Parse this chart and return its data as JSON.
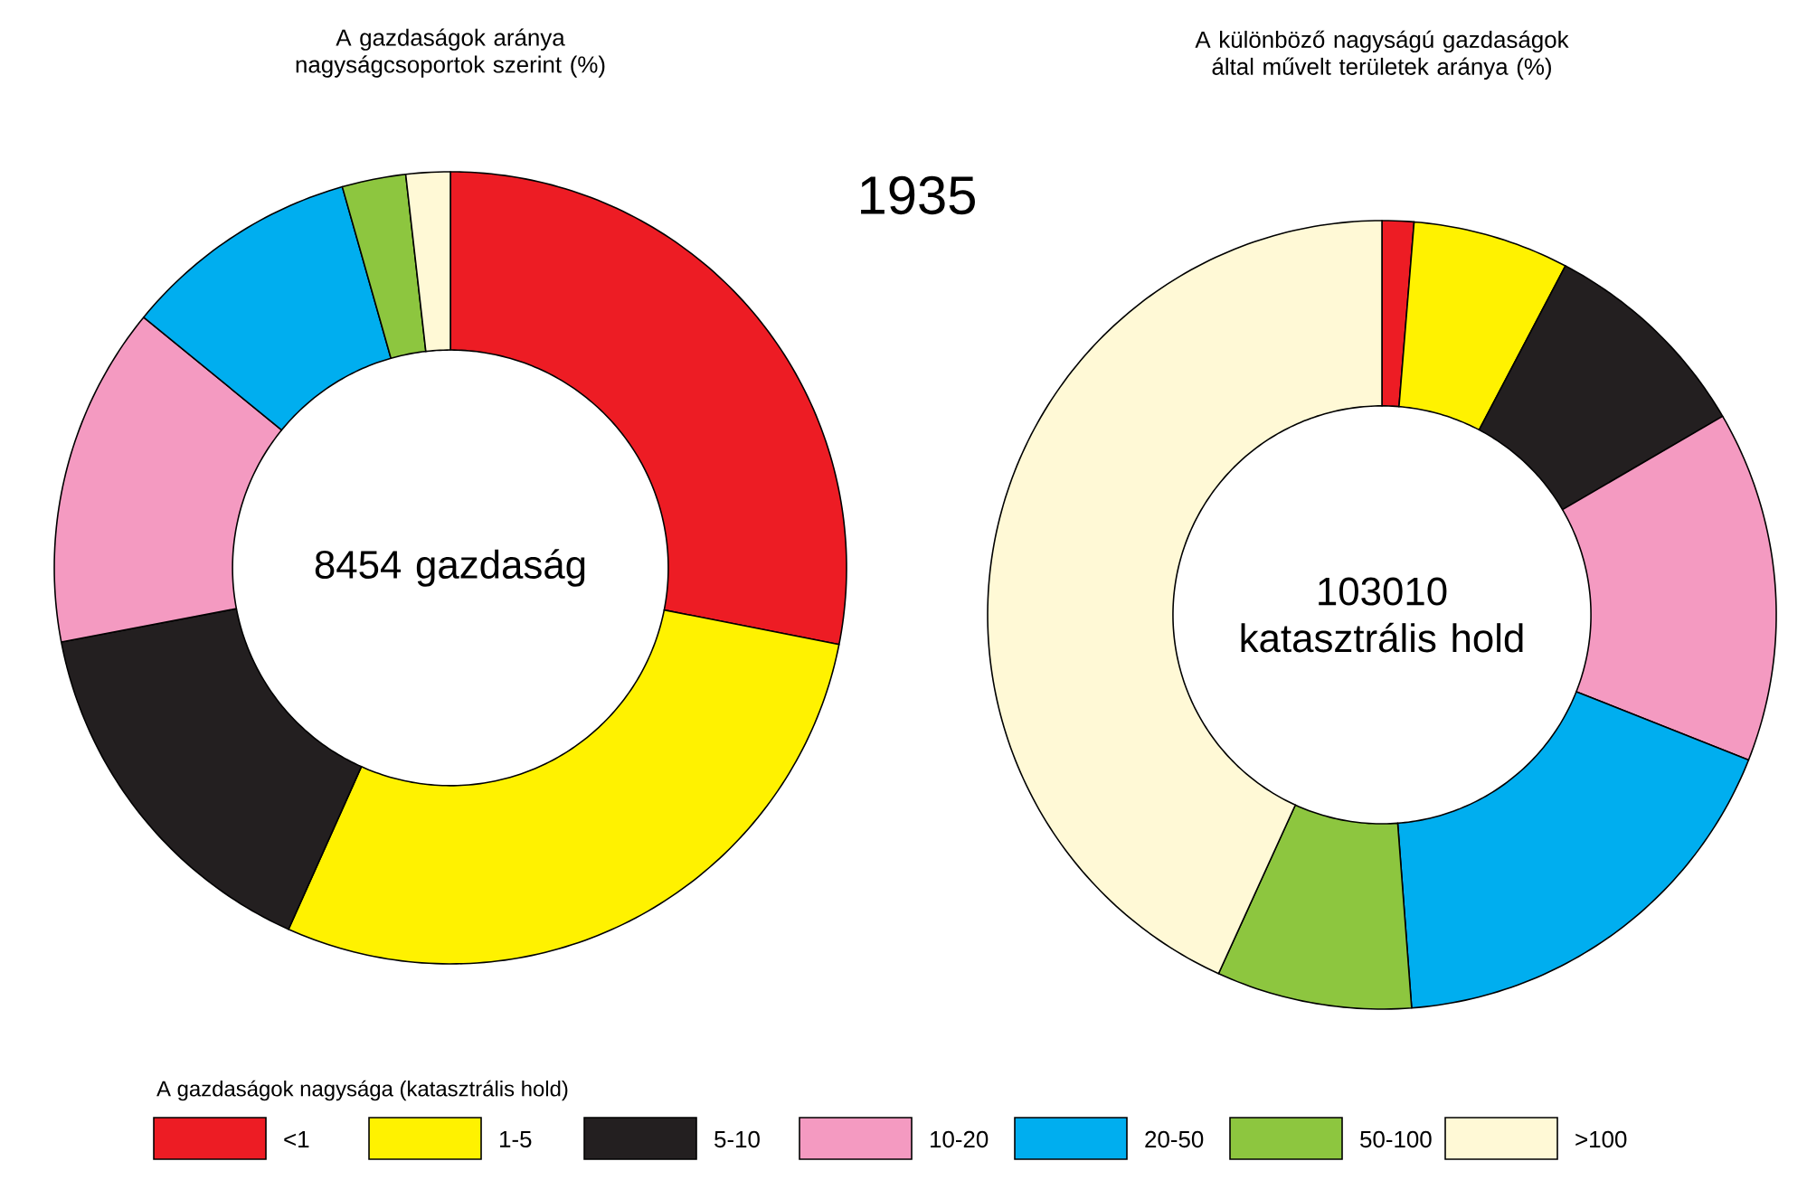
{
  "chart_data": [
    {
      "type": "donut",
      "title": "A gazdaságok aránya nagyságcsoportok szerint (%)",
      "categories": [
        "<1",
        "1-5",
        "5-10",
        "10-20",
        "20-50",
        "50-100",
        ">100"
      ],
      "values": [
        28.1,
        28.6,
        15.3,
        13.9,
        9.7,
        2.6,
        1.8
      ],
      "colors": [
        "#ed1c24",
        "#fff200",
        "#231f20",
        "#f49ac1",
        "#00aeef",
        "#8dc63f",
        "#fff9d6"
      ],
      "annotations": [
        "8454 gazdaság",
        "1935"
      ],
      "legend": "bottom",
      "legend_title": "A gazdaságok nagysága (katasztrális hold)"
    },
    {
      "type": "donut",
      "title": "A különböző nagyságú gazdaságok által művelt területek aránya (%)",
      "categories": [
        null,
        null,
        null,
        null,
        null,
        null,
        null
      ],
      "values": [
        1.3,
        6.4,
        8.9,
        14.4,
        17.8,
        8.0,
        43.2
      ],
      "colors": [
        "#ed1c24",
        "#fff200",
        "#231f20",
        "#f49ac1",
        "#00aeef",
        "#8dc63f",
        "#fff9d6"
      ],
      "annotations": [
        "103010 katasztrális hold"
      ]
    }
  ]
}
